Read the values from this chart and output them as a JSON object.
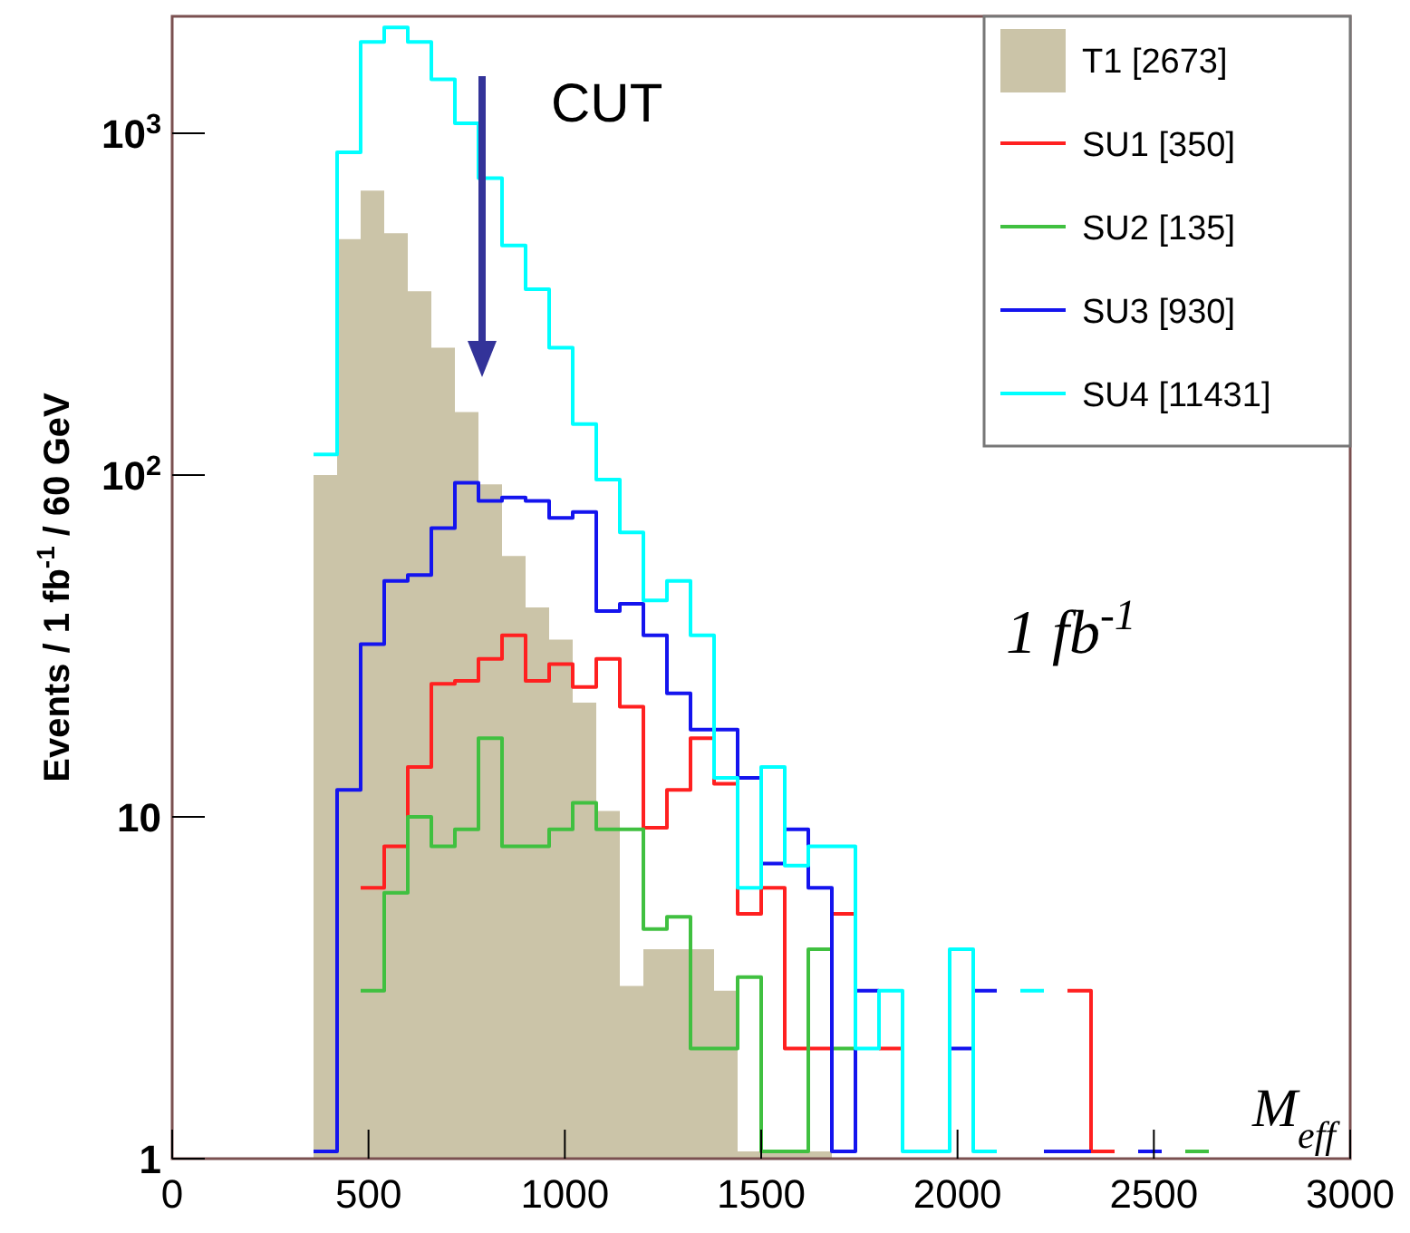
{
  "chart_data": {
    "type": "histogram",
    "ylabel": "Events / 1 fb$^{-1}$ / 60 GeV",
    "xlabel": "M$_{eff}$",
    "bins": [
      0,
      60,
      120,
      180,
      240,
      300,
      360,
      420,
      480,
      540,
      600,
      660,
      720,
      780,
      840,
      900,
      960,
      1020,
      1080,
      1140,
      1200,
      1260,
      1320,
      1380,
      1440,
      1500,
      1560,
      1620,
      1680,
      1740,
      1800,
      1860,
      1920,
      1980,
      2040,
      2100,
      2160,
      2220,
      2280,
      2340,
      2400,
      2460,
      2520,
      2580,
      2640,
      2700,
      2760,
      2820,
      2880,
      2940,
      3000
    ],
    "series": [
      {
        "name": "T1 [2673]",
        "color": "#cbc4a8",
        "values": [
          null,
          null,
          null,
          null,
          null,
          null,
          100,
          490,
          680,
          510,
          345,
          236,
          153,
          94,
          58,
          41,
          33,
          21.6,
          10.4,
          3.2,
          4.1,
          4.1,
          4.1,
          3.1,
          1.05,
          1.05,
          1.05,
          1.05,
          null,
          null,
          null,
          null,
          null,
          null,
          null,
          null,
          null,
          null,
          null,
          null,
          null,
          null,
          null,
          null,
          null,
          null,
          null,
          null,
          null,
          null
        ]
      },
      {
        "name": "SU1 [350]",
        "type": "step",
        "color": "#ff2020",
        "x": [
          480,
          540,
          600,
          660,
          720,
          780,
          840,
          900,
          960,
          1020,
          1080,
          1140,
          1200,
          1260,
          1320,
          1380,
          1440,
          1500,
          1560,
          1620,
          1680,
          1740,
          1800,
          1860,
          2280,
          2340,
          2400
        ],
        "values": [
          6.2,
          8.2,
          14,
          24.5,
          25,
          29,
          34,
          25,
          28,
          24,
          29,
          21,
          9.3,
          12,
          17,
          12.5,
          5.2,
          6.2,
          2.1,
          2.1,
          5.2,
          null,
          2.1,
          null,
          3.1,
          1.05,
          1.05
        ]
      },
      {
        "name": "SU2 [135]",
        "type": "step",
        "color": "#40c040",
        "x": [
          480,
          540,
          600,
          660,
          720,
          780,
          840,
          900,
          960,
          1020,
          1080,
          1140,
          1200,
          1260,
          1320,
          1380,
          1440,
          1500,
          1560,
          1620,
          1680,
          1740,
          2580,
          2640
        ],
        "values": [
          3.1,
          6,
          10,
          8.2,
          9.2,
          17,
          8.2,
          8.2,
          9.2,
          11,
          9.2,
          9.2,
          4.7,
          5.1,
          2.1,
          2.1,
          3.4,
          1.05,
          1.05,
          4.1,
          2.1,
          null,
          1.05,
          1.05
        ]
      },
      {
        "name": "SU3 [930]",
        "type": "step",
        "color": "#1414ee",
        "x": [
          360,
          420,
          480,
          540,
          600,
          660,
          720,
          780,
          840,
          900,
          960,
          1020,
          1080,
          1140,
          1200,
          1260,
          1320,
          1380,
          1440,
          1500,
          1560,
          1620,
          1680,
          1740,
          1800,
          1980,
          2040,
          2100,
          2220,
          2280,
          2340,
          2460,
          2520
        ],
        "values": [
          1.05,
          12,
          32,
          49,
          51,
          70,
          95,
          84,
          86,
          84,
          75,
          78,
          40,
          42,
          34,
          23,
          18,
          18,
          13,
          7.3,
          9.2,
          6.2,
          1.05,
          3.1,
          null,
          2.1,
          3.1,
          null,
          1.05,
          1.05,
          null,
          1.05,
          1.05
        ]
      },
      {
        "name": "SU4 [11431]",
        "type": "step",
        "color": "#00ffff",
        "x": [
          360,
          420,
          480,
          540,
          600,
          660,
          720,
          780,
          840,
          900,
          960,
          1020,
          1080,
          1140,
          1200,
          1260,
          1320,
          1380,
          1440,
          1500,
          1560,
          1620,
          1680,
          1740,
          1800,
          1860,
          1920,
          1980,
          2040,
          2100,
          2160,
          2220
        ],
        "values": [
          115,
          880,
          1850,
          2040,
          1850,
          1440,
          1070,
          740,
          470,
          350,
          236,
          141,
          97,
          68,
          43,
          49,
          34,
          13,
          6.2,
          14,
          7.2,
          8.2,
          8.2,
          2.1,
          3.1,
          1.05,
          1.05,
          4.1,
          1.05,
          null,
          3.1,
          3.1
        ]
      }
    ],
    "xlim": [
      0,
      3000
    ],
    "xticks": [
      0,
      500,
      1000,
      1500,
      2000,
      2500,
      3000
    ],
    "ylim": [
      1,
      2200
    ],
    "yticks": [
      1,
      10,
      {
        "value": 100,
        "label": "10$^{2}$"
      },
      {
        "value": 1000,
        "label": "10$^{3}$"
      }
    ],
    "log": "y",
    "grid": false,
    "legend": "top right",
    "annotations": [
      "CUT",
      "1 fb$^{-1}$"
    ]
  }
}
